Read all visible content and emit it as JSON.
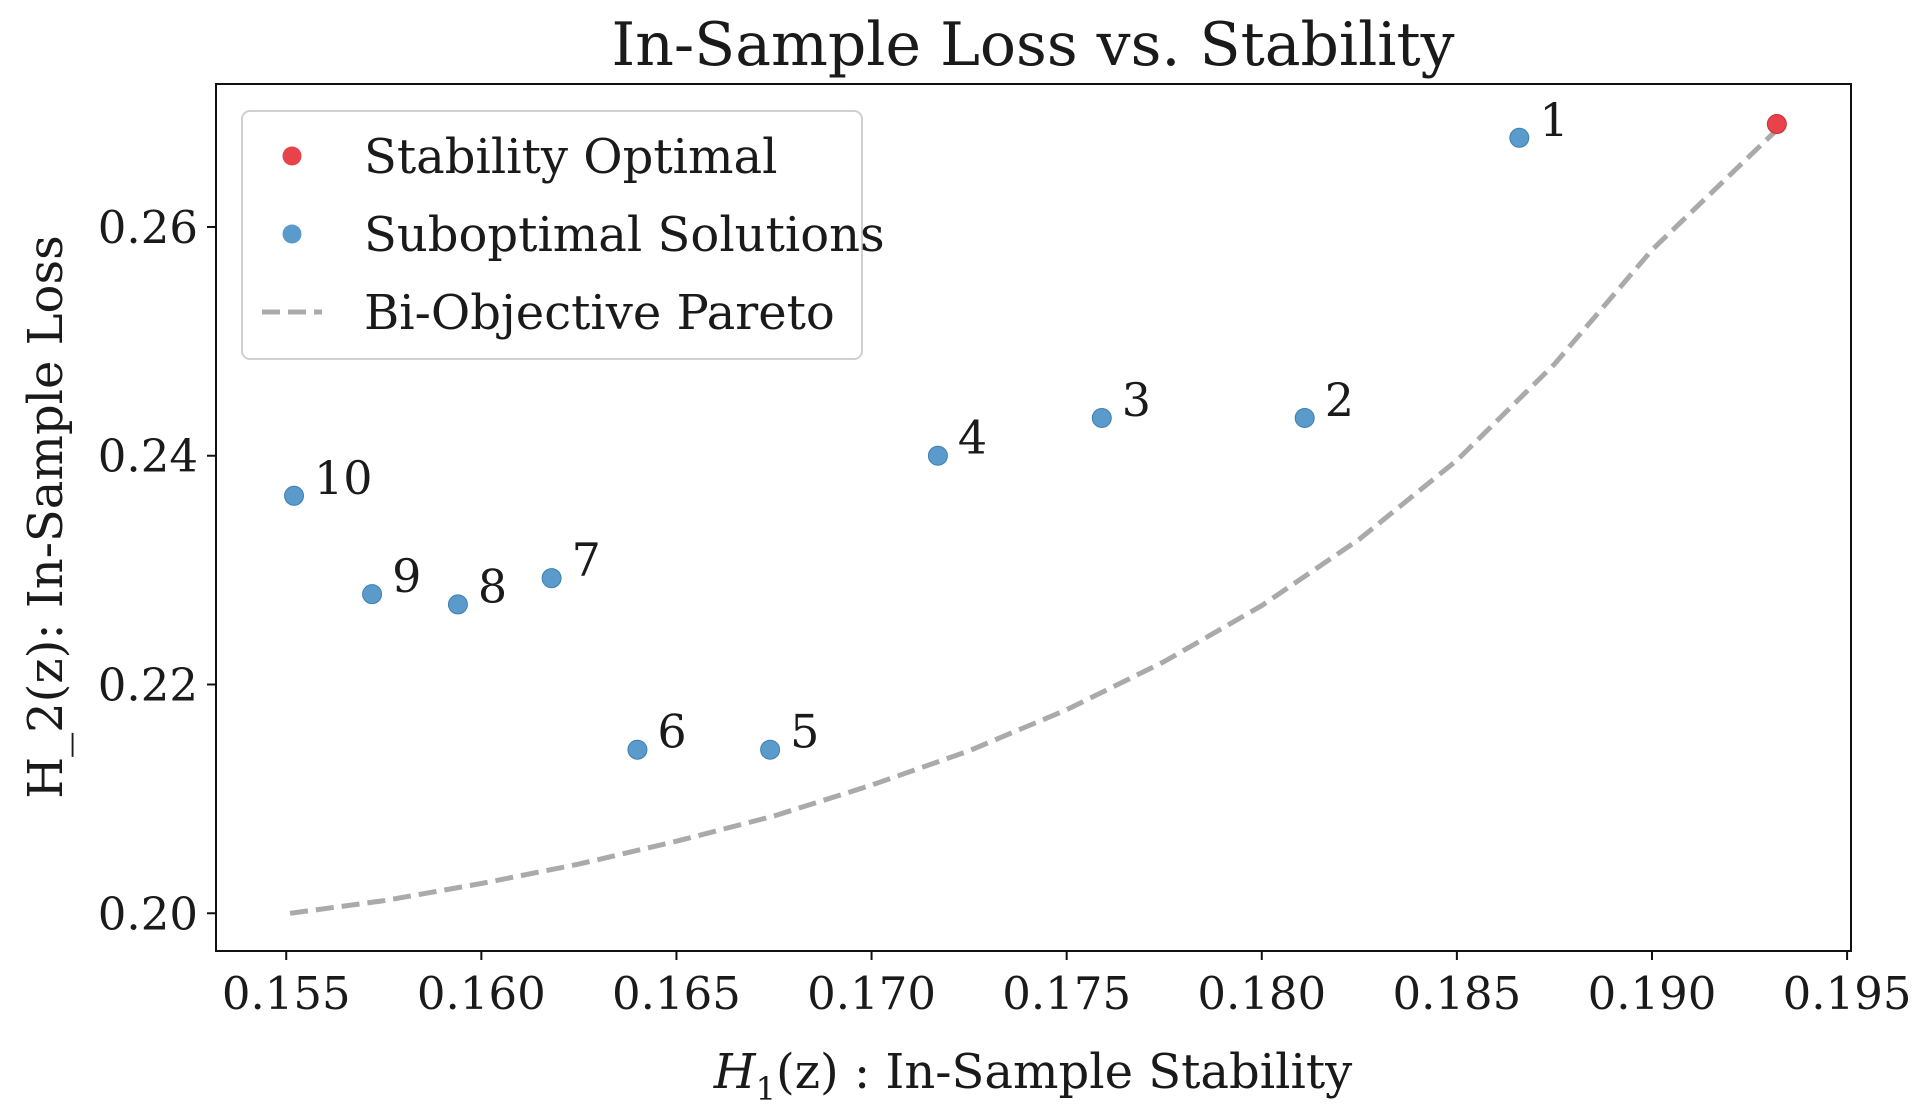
{
  "chart_data": {
    "type": "scatter",
    "title": "In-Sample Loss vs. Stability",
    "xlabel_main": "H",
    "xlabel_sub": "1",
    "xlabel_rest": "(z) : In-Sample Stability",
    "ylabel": "H_2(z): In-Sample Loss",
    "xlim": [
      0.1532,
      0.1951
    ],
    "ylim": [
      0.1967,
      0.2725
    ],
    "xticks": [
      0.155,
      0.16,
      0.165,
      0.17,
      0.175,
      0.18,
      0.185,
      0.19,
      0.195
    ],
    "xtick_labels": [
      "0.155",
      "0.160",
      "0.165",
      "0.170",
      "0.175",
      "0.180",
      "0.185",
      "0.190",
      "0.195"
    ],
    "yticks": [
      0.2,
      0.22,
      0.24,
      0.26
    ],
    "ytick_labels": [
      "0.20",
      "0.22",
      "0.24",
      "0.26"
    ],
    "grid": false,
    "legend_position": "top-left",
    "legend": [
      {
        "label": "Stability Optimal",
        "kind": "marker",
        "color": "#e8424a"
      },
      {
        "label": "Suboptimal Solutions",
        "kind": "marker",
        "color": "#5b9bcb"
      },
      {
        "label": "Bi-Objective Pareto",
        "kind": "dashed-line",
        "color": "#aaaaaa"
      }
    ],
    "series": [
      {
        "name": "Stability Optimal",
        "color": "#e8424a",
        "points": [
          {
            "x": 0.1932,
            "y": 0.269
          }
        ]
      },
      {
        "name": "Suboptimal Solutions",
        "color": "#5b9bcb",
        "points": [
          {
            "label": "1",
            "x": 0.1866,
            "y": 0.2678
          },
          {
            "label": "2",
            "x": 0.1811,
            "y": 0.2433
          },
          {
            "label": "3",
            "x": 0.1759,
            "y": 0.2433
          },
          {
            "label": "4",
            "x": 0.1717,
            "y": 0.24
          },
          {
            "label": "5",
            "x": 0.1674,
            "y": 0.2143
          },
          {
            "label": "6",
            "x": 0.164,
            "y": 0.2143
          },
          {
            "label": "7",
            "x": 0.1618,
            "y": 0.2293
          },
          {
            "label": "8",
            "x": 0.1594,
            "y": 0.227
          },
          {
            "label": "9",
            "x": 0.1572,
            "y": 0.2279
          },
          {
            "label": "10",
            "x": 0.1552,
            "y": 0.2365
          }
        ]
      },
      {
        "name": "Bi-Objective Pareto",
        "type": "line",
        "style": "dashed",
        "color": "#aaaaaa",
        "x": [
          0.1551,
          0.1575,
          0.16,
          0.1625,
          0.165,
          0.1675,
          0.17,
          0.1725,
          0.175,
          0.1775,
          0.18,
          0.1825,
          0.185,
          0.1875,
          0.19,
          0.1932
        ],
        "y": [
          0.2,
          0.2011,
          0.2026,
          0.2043,
          0.2063,
          0.2085,
          0.2112,
          0.2142,
          0.2178,
          0.222,
          0.2269,
          0.2327,
          0.2396,
          0.248,
          0.258,
          0.2685
        ]
      }
    ]
  }
}
